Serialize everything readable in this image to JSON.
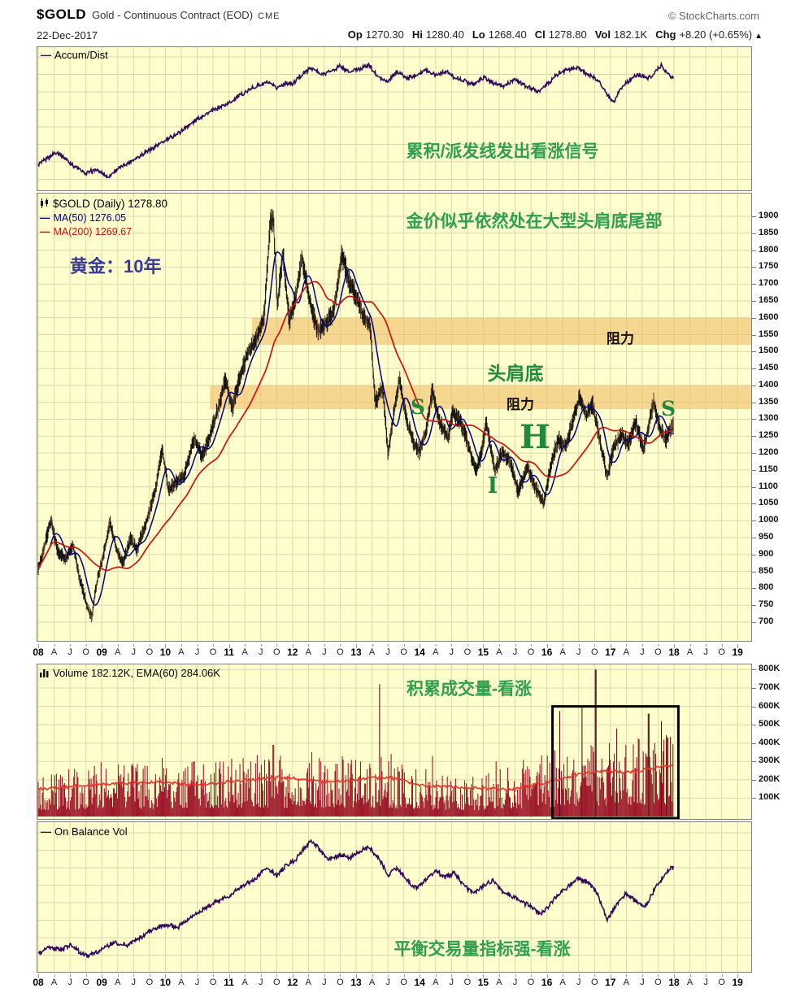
{
  "header": {
    "symbol": "$GOLD",
    "description": "Gold - Continuous Contract (EOD)",
    "exchange": "CME",
    "credit": "© StockCharts.com",
    "date": "22-Dec-2017",
    "quote": [
      {
        "label": "Op",
        "value": "1270.30"
      },
      {
        "label": "Hi",
        "value": "1280.40"
      },
      {
        "label": "Lo",
        "value": "1268.40"
      },
      {
        "label": "Cl",
        "value": "1278.80"
      },
      {
        "label": "Vol",
        "value": "182.1K"
      },
      {
        "label": "Chg",
        "value": "+8.20 (+0.65%)"
      }
    ],
    "change_arrow": "▲"
  },
  "panels": {
    "accum": {
      "legend": "Accum/Dist",
      "annotation": "累积/派发线发出看涨信号"
    },
    "main": {
      "legend_symbol": "$GOLD (Daily) 1278.80",
      "legend_ma50": "MA(50) 1276.05",
      "legend_ma200": "MA(200) 1269.67",
      "annotation_top": "金价似乎依然处在大型头肩底尾部",
      "title_label": "黄金：10年",
      "resistance_upper": "阻力",
      "resistance_lower": "阻力",
      "pattern_label": "头肩底",
      "marker_left_shoulder": "S",
      "marker_head": "H",
      "marker_right_shoulder": "S",
      "marker_head_tick": "I"
    },
    "volume": {
      "legend": "Volume 182.12K, EMA(60) 284.06K",
      "annotation": "积累成交量-看涨"
    },
    "obv": {
      "legend": "On Balance Vol",
      "annotation": "平衡交易量指标强-看涨"
    }
  },
  "axes": {
    "price_ticks": [
      1900,
      1850,
      1800,
      1750,
      1700,
      1650,
      1600,
      1550,
      1500,
      1450,
      1400,
      1350,
      1300,
      1250,
      1200,
      1150,
      1100,
      1050,
      1000,
      950,
      900,
      850,
      800,
      750,
      700
    ],
    "volume_ticks": [
      "800K",
      "700K",
      "600K",
      "500K",
      "400K",
      "300K",
      "200K",
      "100K"
    ],
    "years": [
      "08",
      "09",
      "10",
      "11",
      "12",
      "13",
      "14",
      "15",
      "16",
      "17",
      "18",
      "19"
    ],
    "quarters": [
      "A",
      "J",
      "O"
    ]
  },
  "colors": {
    "panel_bg": "#FFFFCE",
    "grid": "#DBD7AC",
    "purple": "#33085A",
    "navy": "#00007E",
    "red": "#CC1111",
    "candle": "#141414",
    "candle_alt": "#6B4A2F",
    "band": "rgba(240,188,104,0.6)",
    "vol_bar": "#9E1B2C",
    "vol_spike": "#571119",
    "vol_ema": "#E8332A",
    "green": "#2E9E4F",
    "green_dark": "#1E8A3C",
    "blue_label": "#3A3A99",
    "border": "#808080"
  },
  "chart_data": [
    {
      "type": "line",
      "name": "accum_dist",
      "title": "Accum/Dist",
      "x_range": [
        2008,
        2019.2
      ],
      "y_unit": "percent_of_panel",
      "points": [
        [
          2008.0,
          16
        ],
        [
          2008.15,
          22
        ],
        [
          2008.3,
          27
        ],
        [
          2008.45,
          20
        ],
        [
          2008.6,
          14
        ],
        [
          2008.75,
          9
        ],
        [
          2008.9,
          12
        ],
        [
          2009.0,
          10
        ],
        [
          2009.1,
          6
        ],
        [
          2009.25,
          13
        ],
        [
          2009.4,
          17
        ],
        [
          2009.6,
          24
        ],
        [
          2009.8,
          30
        ],
        [
          2010.0,
          36
        ],
        [
          2010.2,
          42
        ],
        [
          2010.4,
          50
        ],
        [
          2010.6,
          57
        ],
        [
          2010.8,
          62
        ],
        [
          2011.0,
          67
        ],
        [
          2011.2,
          74
        ],
        [
          2011.4,
          80
        ],
        [
          2011.6,
          84
        ],
        [
          2011.75,
          79
        ],
        [
          2011.9,
          84
        ],
        [
          2012.0,
          82
        ],
        [
          2012.1,
          88
        ],
        [
          2012.3,
          96
        ],
        [
          2012.45,
          90
        ],
        [
          2012.6,
          93
        ],
        [
          2012.75,
          97
        ],
        [
          2012.9,
          92
        ],
        [
          2013.05,
          95
        ],
        [
          2013.2,
          98
        ],
        [
          2013.35,
          88
        ],
        [
          2013.5,
          84
        ],
        [
          2013.65,
          93
        ],
        [
          2013.8,
          87
        ],
        [
          2013.95,
          90
        ],
        [
          2014.1,
          94
        ],
        [
          2014.25,
          90
        ],
        [
          2014.4,
          93
        ],
        [
          2014.55,
          88
        ],
        [
          2014.7,
          85
        ],
        [
          2014.85,
          82
        ],
        [
          2015.0,
          88
        ],
        [
          2015.15,
          84
        ],
        [
          2015.3,
          80
        ],
        [
          2015.5,
          86
        ],
        [
          2015.7,
          80
        ],
        [
          2015.85,
          76
        ],
        [
          2016.0,
          82
        ],
        [
          2016.15,
          90
        ],
        [
          2016.3,
          94
        ],
        [
          2016.5,
          96
        ],
        [
          2016.65,
          90
        ],
        [
          2016.8,
          86
        ],
        [
          2016.95,
          74
        ],
        [
          2017.05,
          68
        ],
        [
          2017.15,
          78
        ],
        [
          2017.3,
          86
        ],
        [
          2017.45,
          90
        ],
        [
          2017.6,
          87
        ],
        [
          2017.7,
          92
        ],
        [
          2017.8,
          98
        ],
        [
          2017.9,
          91
        ],
        [
          2017.97,
          88
        ]
      ]
    },
    {
      "type": "candlestick",
      "name": "gold_price",
      "title": "$GOLD Daily",
      "ylim": [
        650,
        1940
      ],
      "last_close": 1278.8,
      "ma50_last": 1276.05,
      "ma200_last": 1269.67,
      "price_anchors": [
        [
          2008.0,
          858
        ],
        [
          2008.1,
          925
        ],
        [
          2008.2,
          1002
        ],
        [
          2008.3,
          915
        ],
        [
          2008.42,
          885
        ],
        [
          2008.55,
          928
        ],
        [
          2008.65,
          830
        ],
        [
          2008.78,
          740
        ],
        [
          2008.84,
          714
        ],
        [
          2008.92,
          815
        ],
        [
          2009.0,
          880
        ],
        [
          2009.13,
          992
        ],
        [
          2009.25,
          905
        ],
        [
          2009.33,
          870
        ],
        [
          2009.45,
          945
        ],
        [
          2009.55,
          915
        ],
        [
          2009.7,
          995
        ],
        [
          2009.85,
          1095
        ],
        [
          2009.95,
          1212
        ],
        [
          2010.05,
          1090
        ],
        [
          2010.15,
          1110
        ],
        [
          2010.3,
          1135
        ],
        [
          2010.45,
          1245
        ],
        [
          2010.58,
          1190
        ],
        [
          2010.7,
          1250
        ],
        [
          2010.85,
          1345
        ],
        [
          2010.95,
          1420
        ],
        [
          2011.05,
          1330
        ],
        [
          2011.15,
          1410
        ],
        [
          2011.3,
          1500
        ],
        [
          2011.42,
          1530
        ],
        [
          2011.55,
          1600
        ],
        [
          2011.65,
          1880
        ],
        [
          2011.7,
          1900
        ],
        [
          2011.76,
          1640
        ],
        [
          2011.85,
          1790
        ],
        [
          2011.95,
          1590
        ],
        [
          2012.05,
          1660
        ],
        [
          2012.15,
          1780
        ],
        [
          2012.28,
          1640
        ],
        [
          2012.4,
          1560
        ],
        [
          2012.55,
          1590
        ],
        [
          2012.65,
          1620
        ],
        [
          2012.78,
          1790
        ],
        [
          2012.9,
          1700
        ],
        [
          2013.0,
          1665
        ],
        [
          2013.1,
          1610
        ],
        [
          2013.22,
          1580
        ],
        [
          2013.3,
          1350
        ],
        [
          2013.42,
          1395
        ],
        [
          2013.5,
          1200
        ],
        [
          2013.6,
          1320
        ],
        [
          2013.68,
          1420
        ],
        [
          2013.8,
          1290
        ],
        [
          2013.92,
          1225
        ],
        [
          2014.0,
          1205
        ],
        [
          2014.1,
          1265
        ],
        [
          2014.2,
          1385
        ],
        [
          2014.32,
          1290
        ],
        [
          2014.45,
          1245
        ],
        [
          2014.52,
          1320
        ],
        [
          2014.65,
          1290
        ],
        [
          2014.78,
          1215
        ],
        [
          2014.88,
          1145
        ],
        [
          2014.96,
          1190
        ],
        [
          2015.05,
          1290
        ],
        [
          2015.18,
          1150
        ],
        [
          2015.3,
          1200
        ],
        [
          2015.42,
          1180
        ],
        [
          2015.55,
          1085
        ],
        [
          2015.7,
          1160
        ],
        [
          2015.8,
          1105
        ],
        [
          2015.95,
          1050
        ],
        [
          2016.08,
          1180
        ],
        [
          2016.18,
          1240
        ],
        [
          2016.3,
          1220
        ],
        [
          2016.4,
          1290
        ],
        [
          2016.52,
          1365
        ],
        [
          2016.62,
          1310
        ],
        [
          2016.72,
          1345
        ],
        [
          2016.82,
          1250
        ],
        [
          2016.95,
          1128
        ],
        [
          2017.05,
          1215
        ],
        [
          2017.18,
          1255
        ],
        [
          2017.28,
          1225
        ],
        [
          2017.4,
          1290
        ],
        [
          2017.52,
          1212
        ],
        [
          2017.68,
          1350
        ],
        [
          2017.78,
          1272
        ],
        [
          2017.88,
          1240
        ],
        [
          2017.97,
          1279
        ]
      ],
      "resistance_bands": [
        {
          "price_from": 1520,
          "price_to": 1600,
          "year_start": 2011.36
        },
        {
          "price_from": 1330,
          "price_to": 1400,
          "year_start": 2010.7
        }
      ]
    },
    {
      "type": "bar",
      "name": "volume",
      "title": "Volume",
      "y_unit": "thousands",
      "ylim": [
        0,
        800
      ],
      "envelope": [
        [
          2008,
          140
        ],
        [
          2008.8,
          160
        ],
        [
          2009,
          170
        ],
        [
          2010,
          160
        ],
        [
          2011,
          185
        ],
        [
          2011.8,
          200
        ],
        [
          2012,
          175
        ],
        [
          2013,
          195
        ],
        [
          2013.5,
          185
        ],
        [
          2014,
          150
        ],
        [
          2015,
          140
        ],
        [
          2016,
          200
        ],
        [
          2016.5,
          230
        ],
        [
          2017,
          230
        ],
        [
          2017.5,
          250
        ],
        [
          2017.99,
          260
        ]
      ],
      "spikes": [
        [
          2009.95,
          320
        ],
        [
          2010.45,
          300
        ],
        [
          2011.7,
          390
        ],
        [
          2012.3,
          350
        ],
        [
          2012.8,
          310
        ],
        [
          2013.37,
          720
        ],
        [
          2013.55,
          340
        ],
        [
          2014.2,
          330
        ],
        [
          2015.2,
          300
        ],
        [
          2016.2,
          575
        ],
        [
          2016.55,
          600
        ],
        [
          2016.77,
          800
        ],
        [
          2017.1,
          480
        ],
        [
          2017.45,
          420
        ],
        [
          2017.6,
          560
        ],
        [
          2017.8,
          520
        ],
        [
          2017.9,
          430
        ]
      ],
      "ema_anchors": [
        [
          2008,
          150
        ],
        [
          2009,
          175
        ],
        [
          2009.9,
          190
        ],
        [
          2010.5,
          170
        ],
        [
          2011,
          190
        ],
        [
          2011.8,
          215
        ],
        [
          2012.5,
          190
        ],
        [
          2013,
          200
        ],
        [
          2013.5,
          215
        ],
        [
          2014,
          170
        ],
        [
          2014.8,
          155
        ],
        [
          2015.5,
          148
        ],
        [
          2016,
          185
        ],
        [
          2016.5,
          230
        ],
        [
          2016.9,
          250
        ],
        [
          2017.3,
          240
        ],
        [
          2017.7,
          265
        ],
        [
          2017.99,
          284
        ]
      ],
      "highlight_box": {
        "year_from": 2016.09,
        "year_to": 2018.07,
        "value_from": 0,
        "value_to": 600
      }
    },
    {
      "type": "line",
      "name": "on_balance_volume",
      "title": "On Balance Vol",
      "x_range": [
        2008,
        2019.2
      ],
      "y_unit": "percent_of_panel",
      "points": [
        [
          2008.0,
          6
        ],
        [
          2008.2,
          11
        ],
        [
          2008.35,
          8
        ],
        [
          2008.5,
          13
        ],
        [
          2008.65,
          7
        ],
        [
          2008.8,
          4
        ],
        [
          2009.0,
          9
        ],
        [
          2009.2,
          15
        ],
        [
          2009.4,
          12
        ],
        [
          2009.6,
          18
        ],
        [
          2009.8,
          24
        ],
        [
          2010.0,
          28
        ],
        [
          2010.2,
          26
        ],
        [
          2010.4,
          34
        ],
        [
          2010.6,
          40
        ],
        [
          2010.8,
          46
        ],
        [
          2011.0,
          50
        ],
        [
          2011.2,
          57
        ],
        [
          2011.4,
          63
        ],
        [
          2011.6,
          72
        ],
        [
          2011.75,
          66
        ],
        [
          2011.9,
          74
        ],
        [
          2012.05,
          78
        ],
        [
          2012.2,
          88
        ],
        [
          2012.3,
          93
        ],
        [
          2012.45,
          84
        ],
        [
          2012.6,
          78
        ],
        [
          2012.75,
          82
        ],
        [
          2012.9,
          80
        ],
        [
          2013.05,
          84
        ],
        [
          2013.2,
          88
        ],
        [
          2013.35,
          80
        ],
        [
          2013.5,
          66
        ],
        [
          2013.65,
          72
        ],
        [
          2013.8,
          62
        ],
        [
          2013.95,
          56
        ],
        [
          2014.1,
          63
        ],
        [
          2014.25,
          70
        ],
        [
          2014.4,
          64
        ],
        [
          2014.55,
          68
        ],
        [
          2014.7,
          58
        ],
        [
          2014.85,
          52
        ],
        [
          2015.0,
          58
        ],
        [
          2015.15,
          62
        ],
        [
          2015.3,
          54
        ],
        [
          2015.45,
          50
        ],
        [
          2015.6,
          46
        ],
        [
          2015.75,
          42
        ],
        [
          2015.9,
          36
        ],
        [
          2016.05,
          44
        ],
        [
          2016.2,
          52
        ],
        [
          2016.35,
          58
        ],
        [
          2016.5,
          64
        ],
        [
          2016.65,
          60
        ],
        [
          2016.8,
          52
        ],
        [
          2016.95,
          32
        ],
        [
          2017.1,
          44
        ],
        [
          2017.25,
          52
        ],
        [
          2017.4,
          46
        ],
        [
          2017.55,
          42
        ],
        [
          2017.7,
          56
        ],
        [
          2017.85,
          66
        ],
        [
          2017.97,
          72
        ]
      ]
    }
  ]
}
